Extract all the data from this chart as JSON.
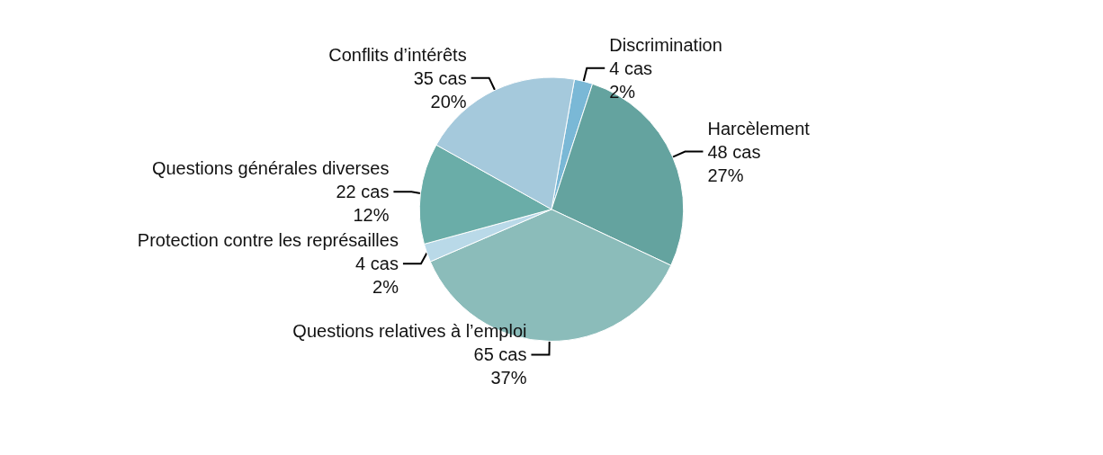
{
  "chart_data": {
    "type": "pie",
    "categories": [
      "Discrimination",
      "Harcèlement",
      "Questions relatives à l’emploi",
      "Protection contre les représailles",
      "Questions générales diverses",
      "Conflits d’intérêts"
    ],
    "values": [
      4,
      48,
      65,
      4,
      22,
      35
    ],
    "value_labels": [
      "4 cas\n2%",
      "48 cas\n27%",
      "65 cas\n37%",
      "4 cas\n2%",
      "22 cas\n12%",
      "35 cas\n20%"
    ],
    "colors": [
      "#7ab8d6",
      "#64a39f",
      "#8bbcba",
      "#b9d9e8",
      "#6aada8",
      "#a5c9dc"
    ],
    "legend": false
  }
}
